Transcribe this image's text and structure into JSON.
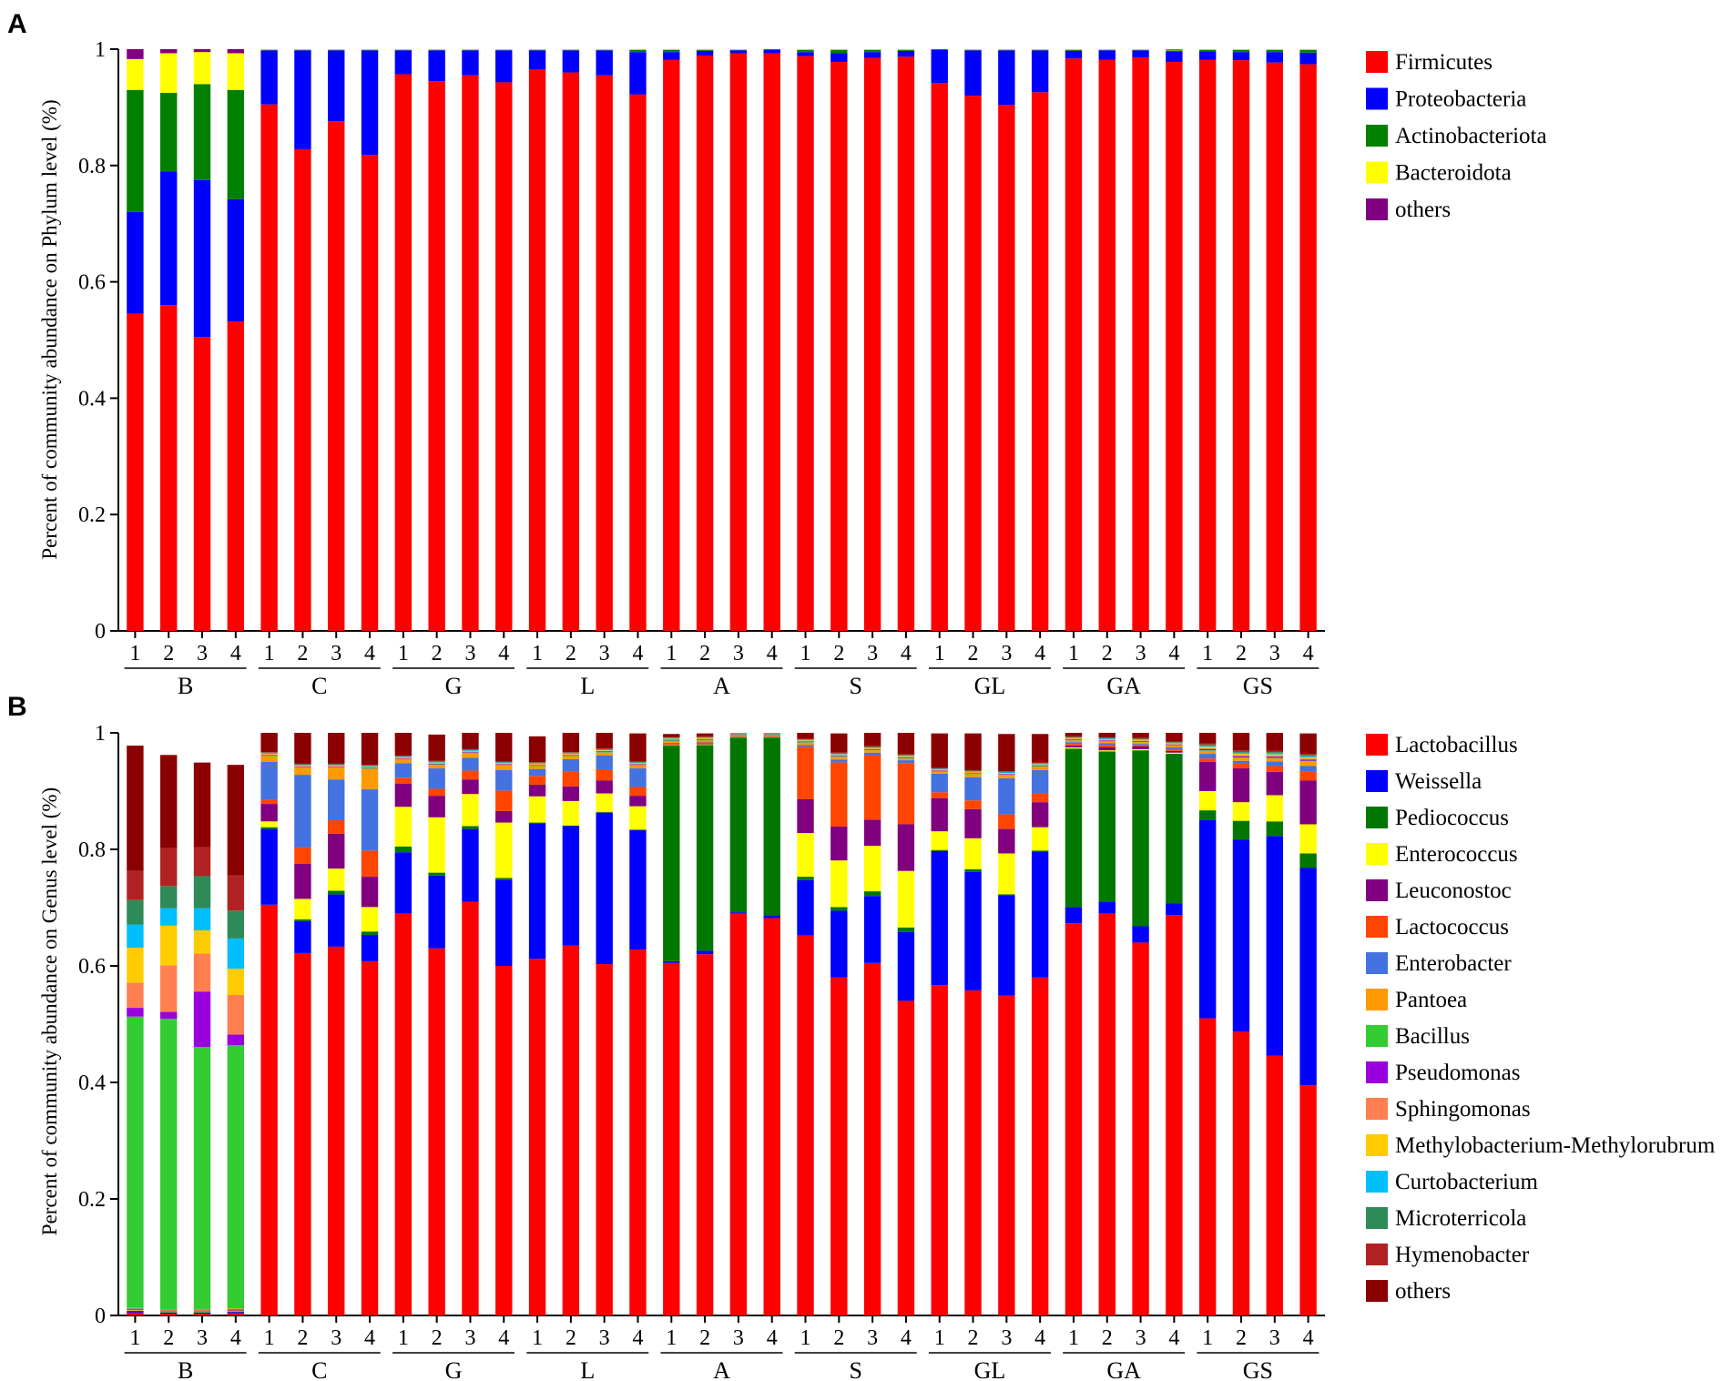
{
  "chart_data": [
    {
      "panel": "A",
      "type": "stacked-bar",
      "ylabel": "Percent of community abundance on Phylum level (%)",
      "ylim": [
        0,
        1
      ],
      "yticks": [
        "0",
        "0.2",
        "0.4",
        "0.6",
        "0.8",
        "1"
      ],
      "groups": [
        "B",
        "C",
        "G",
        "L",
        "A",
        "S",
        "GL",
        "GA",
        "GS"
      ],
      "replicates": [
        "1",
        "2",
        "3",
        "4"
      ],
      "series": [
        {
          "name": "Firmicutes",
          "color": "#ff0000",
          "values": [
            0.545,
            0.56,
            0.505,
            0.532,
            0.905,
            0.828,
            0.876,
            0.818,
            0.957,
            0.945,
            0.955,
            0.943,
            0.965,
            0.96,
            0.955,
            0.922,
            0.982,
            0.989,
            0.993,
            0.993,
            0.988,
            0.978,
            0.985,
            0.987,
            0.942,
            0.92,
            0.904,
            0.926,
            0.984,
            0.982,
            0.986,
            0.978,
            0.982,
            0.981,
            0.977,
            0.974
          ]
        },
        {
          "name": "Proteobacteria",
          "color": "#0000ff",
          "values": [
            0.175,
            0.23,
            0.27,
            0.21,
            0.093,
            0.17,
            0.122,
            0.18,
            0.041,
            0.053,
            0.043,
            0.055,
            0.033,
            0.038,
            0.043,
            0.073,
            0.013,
            0.008,
            0.005,
            0.006,
            0.007,
            0.015,
            0.01,
            0.01,
            0.057,
            0.078,
            0.094,
            0.072,
            0.013,
            0.016,
            0.012,
            0.018,
            0.014,
            0.014,
            0.018,
            0.02
          ]
        },
        {
          "name": "Actinobacteriota",
          "color": "#008000",
          "values": [
            0.21,
            0.135,
            0.165,
            0.188,
            0.001,
            0.001,
            0.001,
            0.001,
            0.001,
            0.001,
            0.001,
            0.001,
            0.001,
            0.001,
            0.001,
            0.004,
            0.004,
            0.002,
            0.001,
            0.001,
            0.004,
            0.006,
            0.004,
            0.002,
            0.001,
            0.001,
            0.001,
            0.001,
            0.002,
            0.001,
            0.001,
            0.002,
            0.003,
            0.004,
            0.004,
            0.005
          ]
        },
        {
          "name": "Bacteroidota",
          "color": "#ffff00",
          "values": [
            0.053,
            0.068,
            0.055,
            0.063,
            0.001,
            0.001,
            0.001,
            0.001,
            0.001,
            0.001,
            0.001,
            0.001,
            0.001,
            0.001,
            0.001,
            0.001,
            0.001,
            0.001,
            0.001,
            0.001,
            0.001,
            0.001,
            0.001,
            0.001,
            0.0,
            0.001,
            0.001,
            0.001,
            0.001,
            0.001,
            0.001,
            0.001,
            0.001,
            0.001,
            0.001,
            0.001
          ]
        },
        {
          "name": "others",
          "color": "#800080",
          "values": [
            0.017,
            0.007,
            0.005,
            0.007,
            0.0,
            0.0,
            0.0,
            0.0,
            0.0,
            0.0,
            0.0,
            0.0,
            0.0,
            0.0,
            0.0,
            0.0,
            0.0,
            0.0,
            0.0,
            0.0,
            0.0,
            0.0,
            0.0,
            0.0,
            0.0,
            0.0,
            0.0,
            0.0,
            0.0,
            0.0,
            0.0,
            0.001,
            0.0,
            0.0,
            0.0,
            0.0
          ]
        }
      ]
    },
    {
      "panel": "B",
      "type": "stacked-bar",
      "ylabel": "Percent of community abundance on Genus level (%)",
      "ylim": [
        0,
        1
      ],
      "yticks": [
        "0",
        "0.2",
        "0.4",
        "0.6",
        "0.8",
        "1"
      ],
      "groups": [
        "B",
        "C",
        "G",
        "L",
        "A",
        "S",
        "GL",
        "GA",
        "GS"
      ],
      "replicates": [
        "1",
        "2",
        "3",
        "4"
      ],
      "series": [
        {
          "name": "Lactobacillus",
          "color": "#ff0000",
          "values": [
            0.005,
            0.003,
            0.003,
            0.004,
            0.705,
            0.622,
            0.633,
            0.608,
            0.69,
            0.63,
            0.71,
            0.6,
            0.612,
            0.635,
            0.603,
            0.628,
            0.605,
            0.62,
            0.69,
            0.682,
            0.652,
            0.58,
            0.605,
            0.54,
            0.567,
            0.558,
            0.549,
            0.58,
            0.673,
            0.69,
            0.64,
            0.687,
            0.51,
            0.487,
            0.446,
            0.395
          ]
        },
        {
          "name": "Weissella",
          "color": "#0000ff",
          "values": [
            0.002,
            0.002,
            0.002,
            0.002,
            0.13,
            0.055,
            0.09,
            0.045,
            0.105,
            0.125,
            0.125,
            0.148,
            0.233,
            0.205,
            0.26,
            0.205,
            0.003,
            0.006,
            0.002,
            0.005,
            0.095,
            0.115,
            0.115,
            0.118,
            0.23,
            0.203,
            0.172,
            0.216,
            0.028,
            0.02,
            0.028,
            0.02,
            0.34,
            0.33,
            0.377,
            0.373
          ]
        },
        {
          "name": "Pediococcus",
          "color": "#007700",
          "values": [
            0.001,
            0.001,
            0.001,
            0.001,
            0.003,
            0.003,
            0.006,
            0.006,
            0.01,
            0.005,
            0.005,
            0.003,
            0.001,
            0.001,
            0.001,
            0.001,
            0.37,
            0.353,
            0.3,
            0.305,
            0.006,
            0.006,
            0.008,
            0.008,
            0.002,
            0.005,
            0.002,
            0.002,
            0.272,
            0.258,
            0.302,
            0.257,
            0.017,
            0.032,
            0.025,
            0.025
          ]
        },
        {
          "name": "Enterococcus",
          "color": "#ffff00",
          "values": [
            0.001,
            0.001,
            0.001,
            0.001,
            0.01,
            0.035,
            0.038,
            0.042,
            0.068,
            0.095,
            0.055,
            0.095,
            0.045,
            0.042,
            0.032,
            0.04,
            0.001,
            0.001,
            0.001,
            0.001,
            0.075,
            0.08,
            0.078,
            0.097,
            0.032,
            0.053,
            0.07,
            0.04,
            0.002,
            0.002,
            0.002,
            0.002,
            0.033,
            0.032,
            0.045,
            0.05
          ]
        },
        {
          "name": "Leuconostoc",
          "color": "#800080",
          "values": [
            0.001,
            0.001,
            0.001,
            0.001,
            0.03,
            0.06,
            0.06,
            0.052,
            0.04,
            0.037,
            0.025,
            0.02,
            0.02,
            0.025,
            0.022,
            0.018,
            0.001,
            0.001,
            0.001,
            0.001,
            0.058,
            0.058,
            0.045,
            0.08,
            0.057,
            0.05,
            0.042,
            0.043,
            0.003,
            0.005,
            0.005,
            0.003,
            0.05,
            0.058,
            0.04,
            0.075
          ]
        },
        {
          "name": "Lactococcus",
          "color": "#ff4500",
          "values": [
            0.001,
            0.001,
            0.001,
            0.001,
            0.007,
            0.028,
            0.023,
            0.045,
            0.01,
            0.012,
            0.015,
            0.035,
            0.015,
            0.025,
            0.018,
            0.015,
            0.002,
            0.003,
            0.001,
            0.001,
            0.09,
            0.11,
            0.11,
            0.105,
            0.01,
            0.015,
            0.025,
            0.015,
            0.003,
            0.004,
            0.002,
            0.003,
            0.006,
            0.008,
            0.01,
            0.015
          ]
        },
        {
          "name": "Enterobacter",
          "color": "#4472e0",
          "values": [
            0.001,
            0.001,
            0.001,
            0.001,
            0.065,
            0.125,
            0.07,
            0.105,
            0.025,
            0.035,
            0.022,
            0.035,
            0.012,
            0.022,
            0.025,
            0.032,
            0.001,
            0.001,
            0.001,
            0.001,
            0.003,
            0.005,
            0.005,
            0.005,
            0.032,
            0.04,
            0.062,
            0.04,
            0.003,
            0.003,
            0.002,
            0.003,
            0.008,
            0.005,
            0.008,
            0.01
          ]
        },
        {
          "name": "Pantoea",
          "color": "#ff9900",
          "values": [
            0.001,
            0.001,
            0.001,
            0.001,
            0.01,
            0.012,
            0.02,
            0.035,
            0.006,
            0.006,
            0.008,
            0.008,
            0.005,
            0.005,
            0.005,
            0.005,
            0.003,
            0.002,
            0.001,
            0.001,
            0.004,
            0.005,
            0.004,
            0.003,
            0.003,
            0.005,
            0.005,
            0.006,
            0.003,
            0.003,
            0.003,
            0.003,
            0.005,
            0.005,
            0.005,
            0.008
          ]
        },
        {
          "name": "Bacillus",
          "color": "#33cc33",
          "values": [
            0.5,
            0.498,
            0.45,
            0.452,
            0.001,
            0.001,
            0.001,
            0.001,
            0.001,
            0.001,
            0.001,
            0.001,
            0.001,
            0.001,
            0.001,
            0.001,
            0.001,
            0.001,
            0.001,
            0.001,
            0.001,
            0.001,
            0.001,
            0.001,
            0.001,
            0.001,
            0.001,
            0.001,
            0.001,
            0.001,
            0.001,
            0.001,
            0.001,
            0.001,
            0.001,
            0.001
          ]
        },
        {
          "name": "Pseudomonas",
          "color": "#9900dd",
          "values": [
            0.015,
            0.012,
            0.095,
            0.018,
            0.001,
            0.001,
            0.001,
            0.001,
            0.001,
            0.001,
            0.001,
            0.001,
            0.001,
            0.001,
            0.001,
            0.001,
            0.001,
            0.001,
            0.001,
            0.001,
            0.001,
            0.001,
            0.001,
            0.001,
            0.001,
            0.001,
            0.001,
            0.001,
            0.001,
            0.001,
            0.001,
            0.001,
            0.002,
            0.002,
            0.002,
            0.002
          ]
        },
        {
          "name": "Sphingomonas",
          "color": "#ff7f50",
          "values": [
            0.043,
            0.08,
            0.065,
            0.068,
            0.001,
            0.001,
            0.001,
            0.001,
            0.001,
            0.001,
            0.001,
            0.001,
            0.001,
            0.001,
            0.001,
            0.001,
            0.001,
            0.001,
            0.001,
            0.001,
            0.001,
            0.001,
            0.001,
            0.001,
            0.001,
            0.001,
            0.001,
            0.001,
            0.001,
            0.001,
            0.001,
            0.001,
            0.002,
            0.002,
            0.002,
            0.002
          ]
        },
        {
          "name": "Methylobacterium-Methylorubrum",
          "color": "#ffcc00",
          "values": [
            0.06,
            0.068,
            0.04,
            0.045,
            0.001,
            0.001,
            0.001,
            0.001,
            0.001,
            0.001,
            0.001,
            0.001,
            0.001,
            0.001,
            0.001,
            0.001,
            0.001,
            0.001,
            0.001,
            0.001,
            0.001,
            0.001,
            0.001,
            0.001,
            0.001,
            0.001,
            0.001,
            0.001,
            0.001,
            0.001,
            0.001,
            0.001,
            0.002,
            0.002,
            0.002,
            0.002
          ]
        },
        {
          "name": "Curtobacterium",
          "color": "#00bfff",
          "values": [
            0.04,
            0.03,
            0.038,
            0.052,
            0.001,
            0.001,
            0.001,
            0.001,
            0.001,
            0.001,
            0.001,
            0.001,
            0.001,
            0.001,
            0.001,
            0.001,
            0.001,
            0.001,
            0.001,
            0.001,
            0.001,
            0.001,
            0.001,
            0.001,
            0.001,
            0.001,
            0.001,
            0.001,
            0.001,
            0.001,
            0.001,
            0.001,
            0.002,
            0.002,
            0.002,
            0.002
          ]
        },
        {
          "name": "Microterricola",
          "color": "#2e8b57",
          "values": [
            0.042,
            0.038,
            0.055,
            0.048,
            0.001,
            0.001,
            0.001,
            0.001,
            0.001,
            0.001,
            0.001,
            0.001,
            0.001,
            0.001,
            0.001,
            0.001,
            0.001,
            0.001,
            0.001,
            0.001,
            0.001,
            0.001,
            0.001,
            0.001,
            0.001,
            0.001,
            0.001,
            0.001,
            0.001,
            0.001,
            0.001,
            0.001,
            0.002,
            0.002,
            0.002,
            0.002
          ]
        },
        {
          "name": "Hymenobacter",
          "color": "#b22222",
          "values": [
            0.05,
            0.065,
            0.05,
            0.06,
            0.001,
            0.001,
            0.001,
            0.001,
            0.001,
            0.001,
            0.001,
            0.001,
            0.001,
            0.001,
            0.001,
            0.001,
            0.001,
            0.001,
            0.001,
            0.001,
            0.001,
            0.001,
            0.001,
            0.001,
            0.001,
            0.001,
            0.001,
            0.001,
            0.001,
            0.001,
            0.001,
            0.001,
            0.002,
            0.002,
            0.002,
            0.002
          ]
        },
        {
          "name": "others",
          "color": "#8b0000",
          "values": [
            0.215,
            0.16,
            0.145,
            0.19,
            0.033,
            0.055,
            0.055,
            0.055,
            0.041,
            0.045,
            0.03,
            0.05,
            0.044,
            0.036,
            0.028,
            0.048,
            0.005,
            0.005,
            0.002,
            0.003,
            0.016,
            0.033,
            0.027,
            0.037,
            0.059,
            0.063,
            0.064,
            0.049,
            0.016,
            0.011,
            0.012,
            0.017,
            0.019,
            0.032,
            0.033,
            0.035
          ]
        }
      ]
    }
  ]
}
